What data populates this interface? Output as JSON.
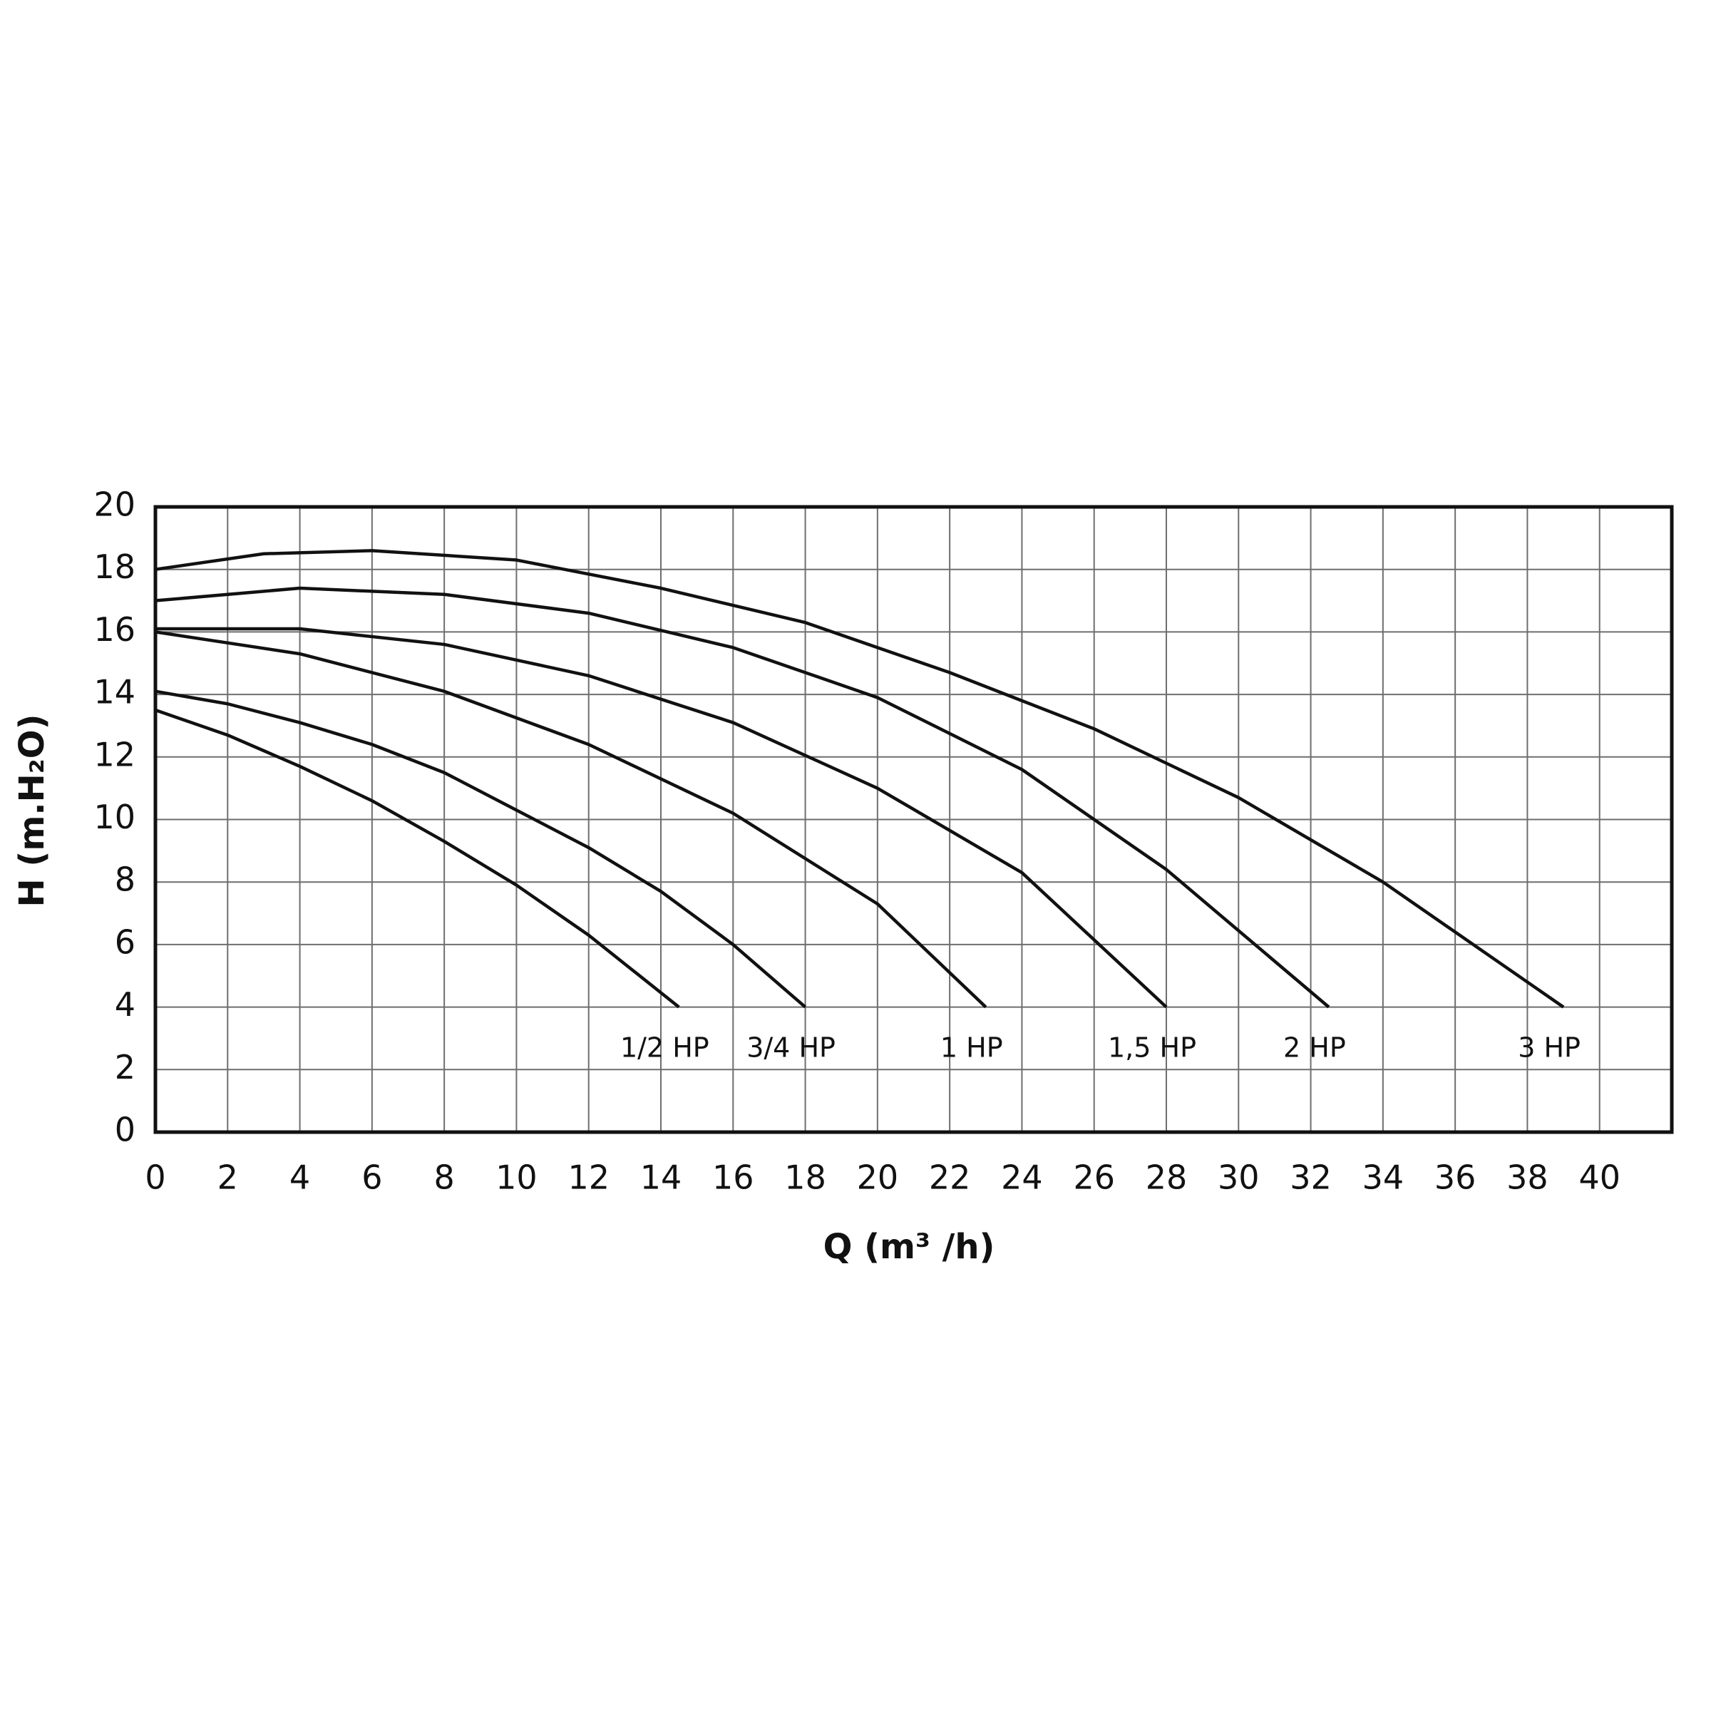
{
  "chart_data": {
    "type": "line",
    "xlabel": "Q (m³ /h)",
    "ylabel": "H (m.H₂O)",
    "xlim": [
      0,
      42
    ],
    "xticks": [
      0,
      2,
      4,
      6,
      8,
      10,
      12,
      14,
      16,
      18,
      20,
      22,
      24,
      26,
      28,
      30,
      32,
      34,
      36,
      38,
      40
    ],
    "ylim": [
      0,
      20
    ],
    "yticks": [
      0,
      2,
      4,
      6,
      8,
      10,
      12,
      14,
      16,
      18,
      20
    ],
    "grid": true,
    "series": [
      {
        "name": "1/2 HP",
        "color": "#111111",
        "x": [
          0,
          2,
          4,
          6,
          8,
          10,
          12,
          14.5
        ],
        "values": [
          13.5,
          12.7,
          11.7,
          10.6,
          9.3,
          7.9,
          6.3,
          4.0
        ]
      },
      {
        "name": "3/4 HP",
        "color": "#111111",
        "x": [
          0,
          2,
          4,
          6,
          8,
          10,
          12,
          14,
          16,
          18
        ],
        "values": [
          14.1,
          13.7,
          13.1,
          12.4,
          11.5,
          10.3,
          9.1,
          7.7,
          6.0,
          4.0
        ]
      },
      {
        "name": "1 HP",
        "color": "#111111",
        "x": [
          0,
          4,
          8,
          12,
          16,
          20,
          23
        ],
        "values": [
          16.0,
          15.3,
          14.1,
          12.4,
          10.2,
          7.3,
          4.0
        ]
      },
      {
        "name": "1,5 HP",
        "color": "#111111",
        "x": [
          0,
          4,
          8,
          12,
          16,
          20,
          24,
          28
        ],
        "values": [
          16.1,
          16.1,
          15.6,
          14.6,
          13.1,
          11.0,
          8.3,
          4.0
        ]
      },
      {
        "name": "2 HP",
        "color": "#111111",
        "x": [
          0,
          4,
          8,
          12,
          16,
          20,
          24,
          28,
          32.5
        ],
        "values": [
          17.0,
          17.4,
          17.2,
          16.6,
          15.5,
          13.9,
          11.6,
          8.4,
          4.0
        ]
      },
      {
        "name": "3 HP",
        "color": "#111111",
        "x": [
          0,
          3,
          6,
          10,
          14,
          18,
          22,
          26,
          30,
          34,
          39
        ],
        "values": [
          18.0,
          18.5,
          18.6,
          18.3,
          17.4,
          16.3,
          14.7,
          12.9,
          10.7,
          8.0,
          4.0
        ]
      }
    ]
  }
}
